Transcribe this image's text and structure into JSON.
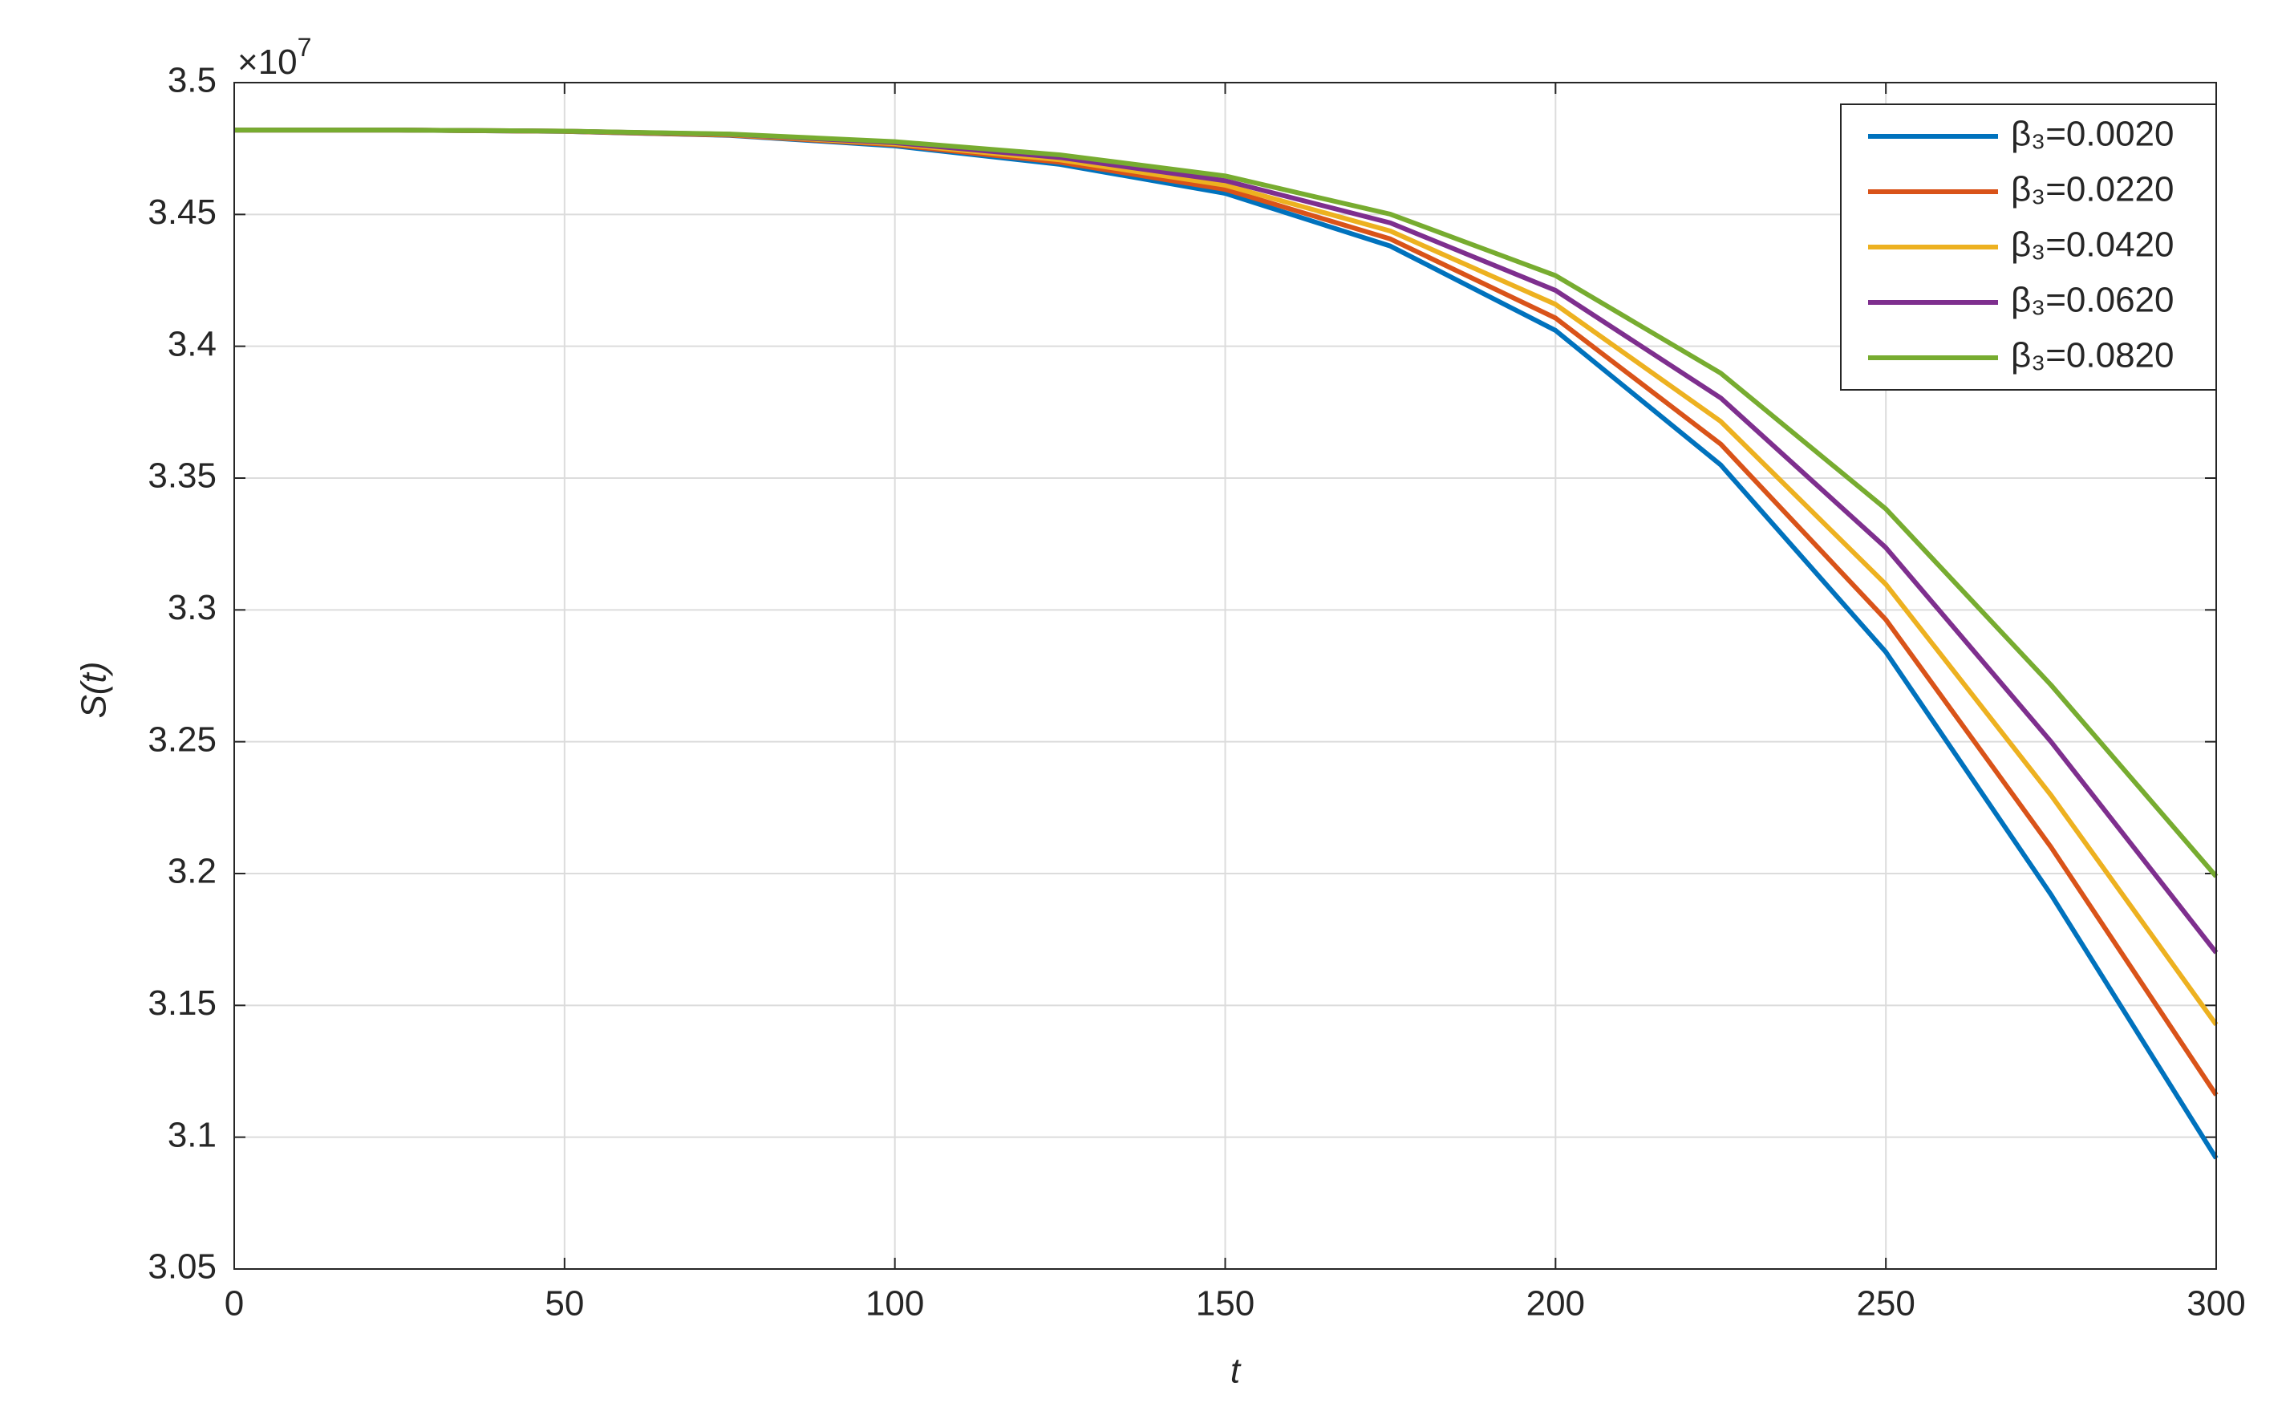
{
  "chart_data": {
    "type": "line",
    "y_label": "S(t)",
    "x_label": "t",
    "y_multiplier": "×10",
    "y_multiplier_exponent": "7",
    "x": [
      0,
      25,
      50,
      75,
      100,
      125,
      150,
      175,
      200,
      225,
      250,
      275,
      300
    ],
    "series": [
      {
        "name": "β₃=0.0020",
        "color": "#0072bd",
        "values": [
          3.482,
          3.482,
          3.4815,
          3.48,
          3.476,
          3.469,
          3.458,
          3.438,
          3.406,
          3.355,
          3.284,
          3.192,
          3.092
        ]
      },
      {
        "name": "β₃=0.0220",
        "color": "#d95319",
        "values": [
          3.482,
          3.482,
          3.4815,
          3.4801,
          3.4764,
          3.4698,
          3.4595,
          3.4407,
          3.4107,
          3.3629,
          3.2963,
          3.21,
          3.116
        ]
      },
      {
        "name": "β₃=0.0420",
        "color": "#edb120",
        "values": [
          3.482,
          3.482,
          3.4816,
          3.4803,
          3.4768,
          3.4707,
          3.4611,
          3.4437,
          3.4159,
          3.3715,
          3.3097,
          3.2297,
          3.1427
        ]
      },
      {
        "name": "β₃=0.0620",
        "color": "#7e2f8e",
        "values": [
          3.482,
          3.482,
          3.4816,
          3.4804,
          3.4772,
          3.4716,
          3.4628,
          3.4468,
          3.4212,
          3.3804,
          3.3236,
          3.25,
          3.17
        ]
      },
      {
        "name": "β₃=0.0820",
        "color": "#77ac30",
        "values": [
          3.482,
          3.482,
          3.4816,
          3.4805,
          3.4776,
          3.4726,
          3.4646,
          3.4501,
          3.4268,
          3.3898,
          3.3383,
          3.2715,
          3.1989
        ]
      }
    ],
    "xlim": [
      0,
      300
    ],
    "xticks": [
      0,
      50,
      100,
      150,
      200,
      250,
      300
    ],
    "ylim": [
      3.05,
      3.5
    ],
    "yticks": [
      3.05,
      3.1,
      3.15,
      3.2,
      3.25,
      3.3,
      3.35,
      3.4,
      3.45,
      3.5
    ],
    "grid": true,
    "legend": "top-right"
  }
}
